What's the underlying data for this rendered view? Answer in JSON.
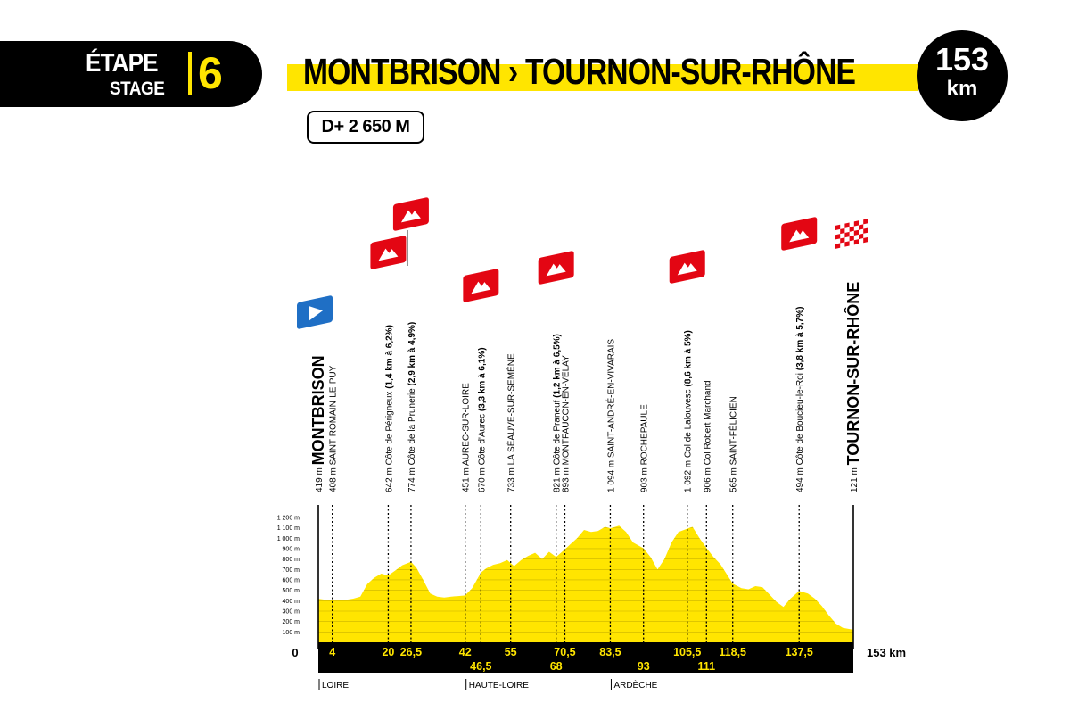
{
  "header": {
    "stage_label_fr": "ÉTAPE",
    "stage_label_en": "STAGE",
    "stage_number": "6",
    "route_title": "MONTBRISON › TOURNON-SUR-RHÔNE",
    "distance_value": "153",
    "distance_unit": "km",
    "elevation_gain": "D+ 2 650 M"
  },
  "colors": {
    "yellow": "#ffe500",
    "black": "#000000",
    "climb_red": "#e30613",
    "start_blue": "#1f6fc5"
  },
  "chart_data": {
    "type": "area",
    "title": "MONTBRISON › TOURNON-SUR-RHÔNE",
    "xlabel": "",
    "ylabel": "",
    "xlim": [
      0,
      153
    ],
    "ylim": [
      0,
      1200
    ],
    "y_tick_labels": [
      "100 m",
      "200 m",
      "300 m",
      "400 m",
      "500 m",
      "600 m",
      "700 m",
      "800 m",
      "900 m",
      "1 000 m",
      "1 100 m",
      "1 200 m"
    ],
    "y_tick_values": [
      100,
      200,
      300,
      400,
      500,
      600,
      700,
      800,
      900,
      1000,
      1100,
      1200
    ],
    "km_start_label": "0",
    "km_end_label": "153 km",
    "profile": {
      "x": [
        0,
        2,
        4,
        6,
        8,
        10,
        12,
        14,
        16,
        18,
        20,
        22,
        24,
        26.5,
        28,
        30,
        32,
        34,
        36,
        38,
        40,
        42,
        44,
        46.5,
        48,
        50,
        52,
        54,
        56,
        58,
        60,
        62,
        64,
        66,
        68,
        70.5,
        72,
        74,
        76,
        78,
        80,
        82,
        83.5,
        86,
        88,
        90,
        93,
        95,
        97,
        99,
        101,
        103,
        105.5,
        107,
        109,
        111,
        113,
        115,
        118.5,
        121,
        123,
        125,
        127,
        129,
        131,
        133,
        135,
        137.5,
        140,
        142,
        144,
        146,
        148,
        150,
        153
      ],
      "y": [
        419,
        410,
        408,
        405,
        410,
        420,
        440,
        560,
        620,
        660,
        642,
        690,
        740,
        774,
        720,
        600,
        470,
        440,
        430,
        440,
        445,
        451,
        520,
        670,
        710,
        745,
        760,
        790,
        733,
        790,
        830,
        860,
        800,
        870,
        821,
        893,
        940,
        1000,
        1080,
        1060,
        1070,
        1110,
        1094,
        1120,
        1060,
        960,
        903,
        820,
        700,
        800,
        960,
        1060,
        1092,
        1110,
        1000,
        906,
        820,
        750,
        565,
        520,
        510,
        540,
        530,
        460,
        390,
        340,
        420,
        494,
        470,
        420,
        350,
        260,
        180,
        140,
        121
      ]
    },
    "km_markers": [
      {
        "km": 4,
        "label": "4",
        "row": 1
      },
      {
        "km": 20,
        "label": "20",
        "row": 1
      },
      {
        "km": 26.5,
        "label": "26,5",
        "row": 1
      },
      {
        "km": 42,
        "label": "42",
        "row": 1
      },
      {
        "km": 46.5,
        "label": "46,5",
        "row": 2
      },
      {
        "km": 55,
        "label": "55",
        "row": 1
      },
      {
        "km": 68,
        "label": "68",
        "row": 2
      },
      {
        "km": 70.5,
        "label": "70,5",
        "row": 1
      },
      {
        "km": 83.5,
        "label": "83,5",
        "row": 1
      },
      {
        "km": 93,
        "label": "93",
        "row": 2
      },
      {
        "km": 105.5,
        "label": "105,5",
        "row": 1
      },
      {
        "km": 111,
        "label": "111",
        "row": 2
      },
      {
        "km": 118.5,
        "label": "118,5",
        "row": 1
      },
      {
        "km": 137.5,
        "label": "137,5",
        "row": 1
      }
    ],
    "waypoints": [
      {
        "km": 0,
        "alt": "419 m",
        "name": "MONTBRISON",
        "detail": "",
        "kind": "start"
      },
      {
        "km": 4,
        "alt": "408 m",
        "name": "SAINT-ROMAIN-LE-PUY",
        "detail": "",
        "kind": "town"
      },
      {
        "km": 20,
        "alt": "642 m",
        "name": "Côte de Périgneux",
        "detail": "(1,4 km à 6,2%)",
        "kind": "climb"
      },
      {
        "km": 26.5,
        "alt": "774 m",
        "name": "Côte de la Prunerie",
        "detail": "(2,9 km à 4,9%)",
        "kind": "climb"
      },
      {
        "km": 42,
        "alt": "451 m",
        "name": "AUREC-SUR-LOIRE",
        "detail": "",
        "kind": "town"
      },
      {
        "km": 46.5,
        "alt": "670 m",
        "name": "Côte d'Aurec",
        "detail": "(3,3 km à 6,1%)",
        "kind": "climb"
      },
      {
        "km": 55,
        "alt": "733 m",
        "name": "LA SÉAUVE-SUR-SEMÈNE",
        "detail": "",
        "kind": "town"
      },
      {
        "km": 68,
        "alt": "821 m",
        "name": "Côte de Praneuf",
        "detail": "(1,2 km à 6,5%)",
        "kind": "climb"
      },
      {
        "km": 70.5,
        "alt": "893 m",
        "name": "MONTFAUCON-EN-VELAY",
        "detail": "",
        "kind": "town"
      },
      {
        "km": 83.5,
        "alt": "1 094 m",
        "name": "SAINT-ANDRÉ-EN-VIVARAIS",
        "detail": "",
        "kind": "town"
      },
      {
        "km": 93,
        "alt": "903 m",
        "name": "ROCHEPAULE",
        "detail": "",
        "kind": "town"
      },
      {
        "km": 105.5,
        "alt": "1 092 m",
        "name": "Col de Lalouvesc",
        "detail": "(8,6 km à 5%)",
        "kind": "climb"
      },
      {
        "km": 111,
        "alt": "906 m",
        "name": "Col Robert Marchand",
        "detail": "",
        "kind": "town"
      },
      {
        "km": 118.5,
        "alt": "565 m",
        "name": "SAINT-FÉLICIEN",
        "detail": "",
        "kind": "town"
      },
      {
        "km": 137.5,
        "alt": "494 m",
        "name": "Côte de Boucieu-le-Roi",
        "detail": "(3,8 km à 5,7%)",
        "kind": "climb"
      },
      {
        "km": 153,
        "alt": "121 m",
        "name": "TOURNON-SUR-RHÔNE",
        "detail": "",
        "kind": "finish"
      }
    ],
    "regions": [
      {
        "km": 0,
        "label": "LOIRE"
      },
      {
        "km": 42,
        "label": "HAUTE-LOIRE"
      },
      {
        "km": 83.5,
        "label": "ARDÈCHE"
      }
    ]
  }
}
